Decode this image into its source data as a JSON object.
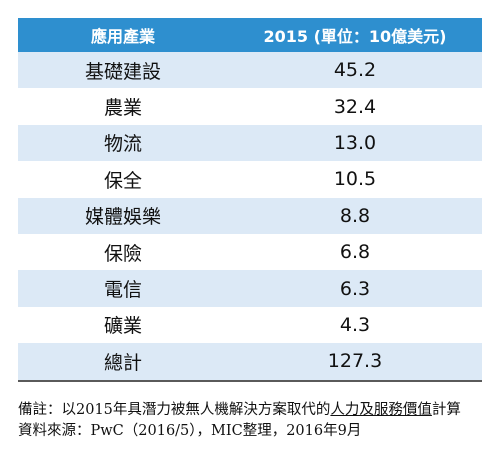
{
  "table": {
    "header": [
      "應用產業",
      "2015 (單位：10億美元)"
    ],
    "rows": [
      [
        "基礎建設",
        "45.2"
      ],
      [
        "農業",
        "32.4"
      ],
      [
        "物流",
        "13.0"
      ],
      [
        "保全",
        "10.5"
      ],
      [
        "媒體娛樂",
        "8.8"
      ],
      [
        "保險",
        "6.8"
      ],
      [
        "電信",
        "6.3"
      ],
      [
        "礦業",
        "4.3"
      ],
      [
        "總計",
        "127.3"
      ]
    ]
  },
  "notes": {
    "remark": {
      "prefix": "備註：以2015年具潛力被無人機解決方案取代的",
      "underlined": "人力及服務價值",
      "suffix": "計算"
    },
    "source": "資料來源：PwC（2016/5），MIC整理，2016年9月"
  }
}
